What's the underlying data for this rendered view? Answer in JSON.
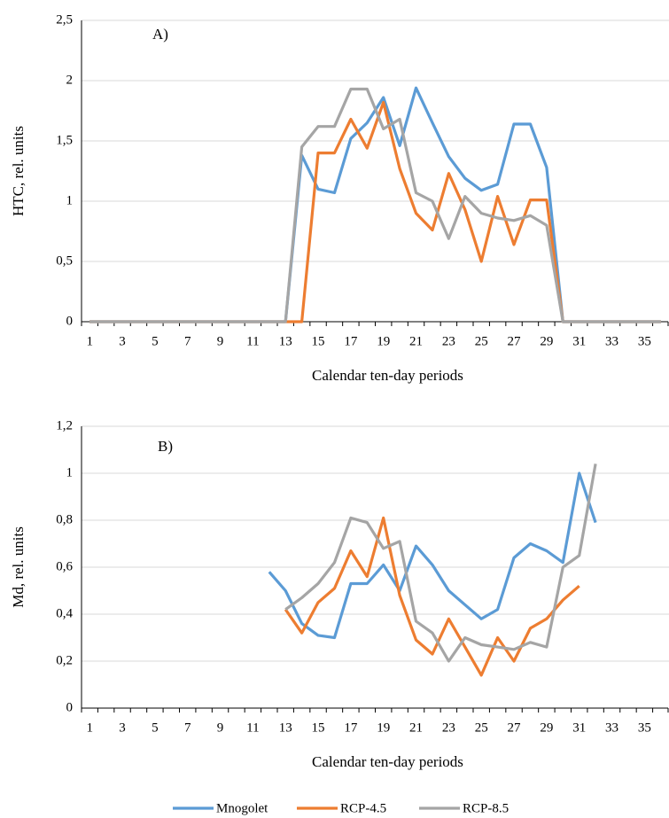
{
  "chart_data": [
    {
      "type": "line",
      "annotation": "A)",
      "y_label": "HTC, rel. units",
      "x_label": "Calendar ten-day periods",
      "categories": [
        1,
        null,
        3,
        null,
        5,
        null,
        7,
        null,
        9,
        null,
        11,
        null,
        13,
        null,
        15,
        null,
        17,
        null,
        19,
        null,
        21,
        null,
        23,
        null,
        25,
        null,
        27,
        null,
        29,
        null,
        31,
        null,
        33,
        null,
        35,
        null
      ],
      "ylim": [
        0,
        2.5
      ],
      "yticks": [
        0,
        {
          "value": 0.5,
          "label": "0,5"
        },
        1,
        {
          "value": 1.5,
          "label": "1,5"
        },
        2,
        {
          "value": 2.5,
          "label": "2,5"
        }
      ],
      "grid": true,
      "series": [
        {
          "color": "#5b9bd5",
          "values": [
            0,
            0,
            0,
            0,
            0,
            0,
            0,
            0,
            0,
            0,
            0,
            0,
            0,
            1.38,
            1.1,
            1.07,
            1.52,
            1.65,
            1.86,
            1.46,
            1.94,
            1.65,
            1.37,
            1.19,
            1.09,
            1.14,
            1.64,
            1.64,
            1.28,
            0,
            0,
            0,
            0,
            0,
            0,
            0
          ]
        },
        {
          "color": "#ed7d31",
          "values": [
            0,
            0,
            0,
            0,
            0,
            0,
            0,
            0,
            0,
            0,
            0,
            0,
            0,
            0,
            1.4,
            1.4,
            1.68,
            1.44,
            1.82,
            1.27,
            0.9,
            0.76,
            1.23,
            0.93,
            0.5,
            1.04,
            0.64,
            1.01,
            1.01,
            0,
            0,
            0,
            0,
            0,
            0,
            0
          ]
        },
        {
          "color": "#a5a5a5",
          "values": [
            0,
            0,
            0,
            0,
            0,
            0,
            0,
            0,
            0,
            0,
            0,
            0,
            0,
            1.45,
            1.62,
            1.62,
            1.93,
            1.93,
            1.6,
            1.68,
            1.07,
            1.0,
            0.69,
            1.04,
            0.9,
            0.86,
            0.84,
            0.88,
            0.8,
            0,
            0,
            0,
            0,
            0,
            0,
            0
          ]
        }
      ]
    },
    {
      "type": "line",
      "annotation": "B)",
      "y_label": "Md, rel. units",
      "x_label": "Calendar ten-day periods",
      "categories": [
        1,
        null,
        3,
        null,
        5,
        null,
        7,
        null,
        9,
        null,
        11,
        null,
        13,
        null,
        15,
        null,
        17,
        null,
        19,
        null,
        21,
        null,
        23,
        null,
        25,
        null,
        27,
        null,
        29,
        null,
        31,
        null,
        33,
        null,
        35,
        null
      ],
      "ylim": [
        0,
        1.2
      ],
      "yticks": [
        0,
        {
          "value": 0.2,
          "label": "0,2"
        },
        {
          "value": 0.4,
          "label": "0,4"
        },
        {
          "value": 0.6,
          "label": "0,6"
        },
        {
          "value": 0.8,
          "label": "0,8"
        },
        1,
        {
          "value": 1.2,
          "label": "1,2"
        }
      ],
      "grid": true,
      "series": [
        {
          "name": "Mnogolet",
          "color": "#5b9bd5",
          "values": [
            null,
            null,
            null,
            null,
            null,
            null,
            null,
            null,
            null,
            null,
            null,
            0.58,
            0.5,
            0.36,
            0.31,
            0.3,
            0.53,
            0.53,
            0.61,
            0.5,
            0.69,
            0.61,
            0.5,
            0.44,
            0.38,
            0.42,
            0.64,
            0.7,
            0.67,
            0.62,
            1.0,
            0.79,
            null,
            null,
            null,
            null
          ]
        },
        {
          "name": "RCP-4.5",
          "color": "#ed7d31",
          "values": [
            null,
            null,
            null,
            null,
            null,
            null,
            null,
            null,
            null,
            null,
            null,
            null,
            0.42,
            0.32,
            0.45,
            0.51,
            0.67,
            0.56,
            0.81,
            0.48,
            0.29,
            0.23,
            0.38,
            0.26,
            0.14,
            0.3,
            0.2,
            0.34,
            0.38,
            0.46,
            0.52,
            null,
            null,
            null,
            null,
            null
          ]
        },
        {
          "name": "RCP-8.5",
          "color": "#a5a5a5",
          "values": [
            null,
            null,
            null,
            null,
            null,
            null,
            null,
            null,
            null,
            null,
            null,
            null,
            0.42,
            0.47,
            0.53,
            0.62,
            0.81,
            0.79,
            0.68,
            0.71,
            0.37,
            0.32,
            0.2,
            0.3,
            0.27,
            0.26,
            0.25,
            0.28,
            0.26,
            0.6,
            0.65,
            1.04,
            null,
            null,
            null,
            null
          ]
        }
      ]
    }
  ]
}
